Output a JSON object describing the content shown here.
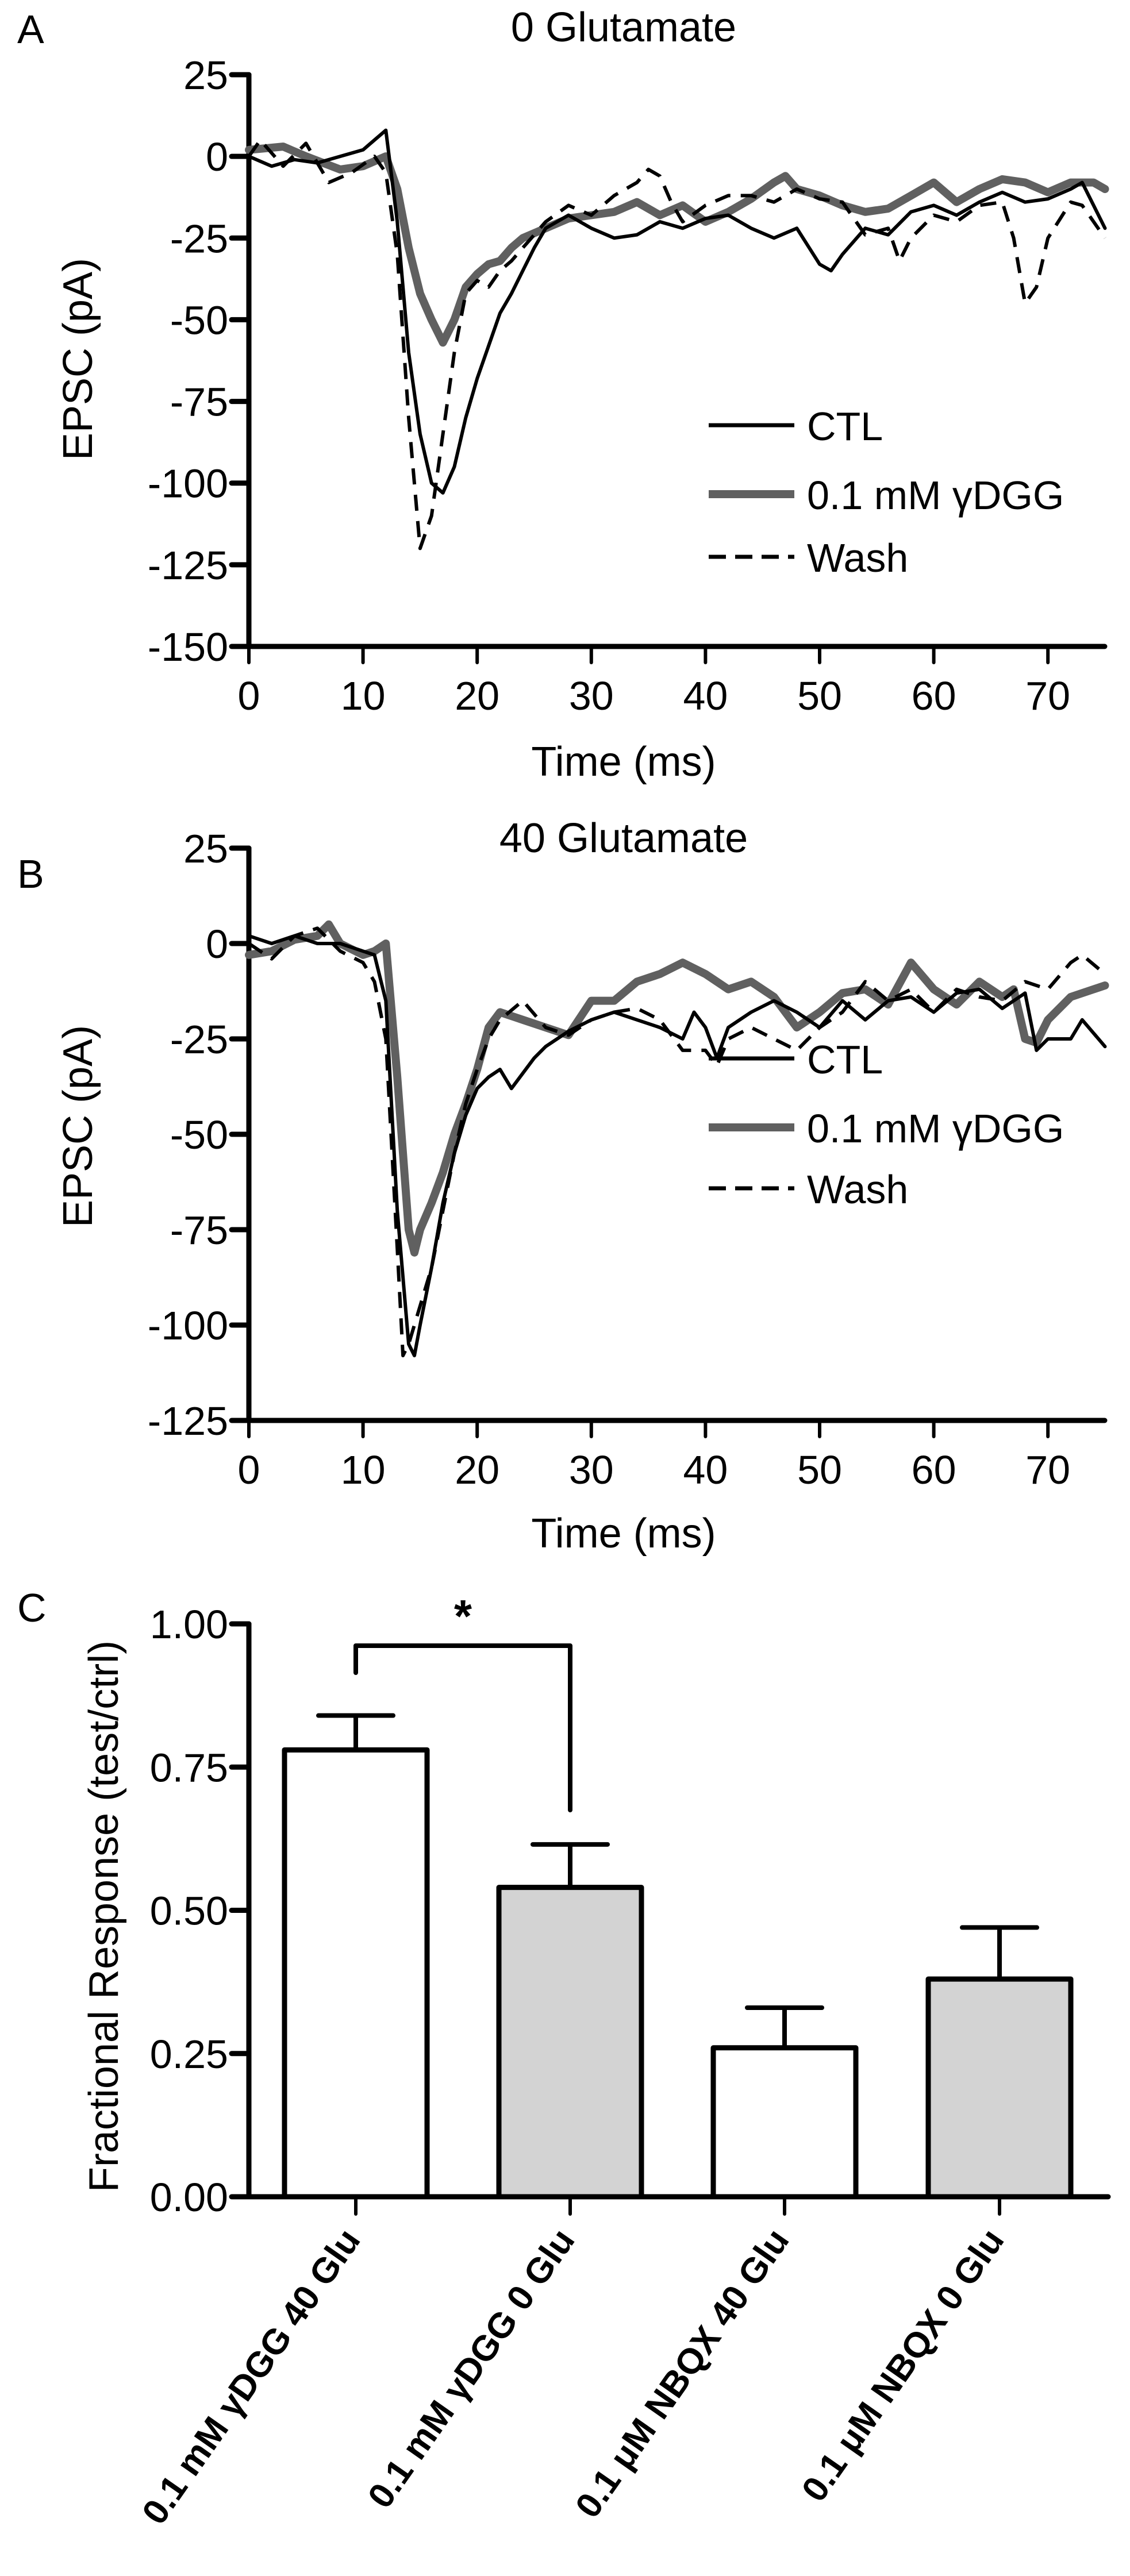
{
  "chart_data": [
    {
      "panel": "A",
      "type": "line",
      "title": "0 Glutamate",
      "xlabel": "Time (ms)",
      "ylabel": "EPSC (pA)",
      "xlim": [
        0,
        75
      ],
      "ylim": [
        -150,
        25
      ],
      "xticks": [
        0,
        10,
        20,
        30,
        40,
        50,
        60,
        70
      ],
      "yticks": [
        25,
        0,
        -25,
        -50,
        -75,
        -100,
        -125,
        -150
      ],
      "grid": false,
      "legend": "center-right",
      "series": [
        {
          "name": "CTL",
          "style": "solid",
          "color": "#000000",
          "x": [
            0,
            2,
            4,
            6,
            8,
            10,
            12,
            13,
            14,
            15,
            16,
            17,
            18,
            19,
            20,
            21,
            22,
            23,
            24,
            25,
            26,
            28,
            30,
            32,
            34,
            36,
            38,
            40,
            42,
            44,
            46,
            48,
            50,
            51,
            52,
            54,
            56,
            58,
            60,
            62,
            64,
            66,
            68,
            70,
            72,
            73,
            75
          ],
          "y": [
            0,
            -3,
            -1,
            -2,
            0,
            2,
            8,
            -20,
            -60,
            -85,
            -100,
            -103,
            -95,
            -80,
            -68,
            -58,
            -48,
            -42,
            -35,
            -28,
            -22,
            -18,
            -22,
            -25,
            -24,
            -20,
            -22,
            -19,
            -18,
            -22,
            -25,
            -22,
            -33,
            -35,
            -30,
            -22,
            -24,
            -17,
            -15,
            -18,
            -14,
            -11,
            -14,
            -13,
            -10,
            -8,
            -22
          ]
        },
        {
          "name": "0.1 mM γDGG",
          "style": "thick",
          "color": "#606060",
          "x": [
            0,
            3,
            5,
            8,
            10,
            12,
            13,
            14,
            15,
            16,
            17,
            18,
            19,
            20,
            21,
            22,
            23,
            24,
            26,
            28,
            30,
            32,
            34,
            36,
            38,
            40,
            42,
            44,
            46,
            47,
            48,
            50,
            52,
            54,
            56,
            58,
            60,
            62,
            64,
            66,
            68,
            70,
            72,
            74,
            75
          ],
          "y": [
            2,
            3,
            0,
            -4,
            -3,
            0,
            -10,
            -28,
            -42,
            -50,
            -57,
            -50,
            -40,
            -36,
            -33,
            -32,
            -28,
            -25,
            -22,
            -19,
            -18,
            -17,
            -14,
            -18,
            -15,
            -20,
            -17,
            -13,
            -8,
            -6,
            -10,
            -12,
            -15,
            -17,
            -16,
            -12,
            -8,
            -14,
            -10,
            -7,
            -8,
            -11,
            -8,
            -8,
            -10
          ]
        },
        {
          "name": "Wash",
          "style": "dashed",
          "color": "#000000",
          "x": [
            0,
            1,
            3,
            5,
            7,
            9,
            11,
            12,
            13,
            14,
            15,
            16,
            17,
            18,
            19,
            20,
            21,
            22,
            23,
            24,
            26,
            28,
            30,
            32,
            34,
            35,
            36,
            37,
            38,
            40,
            42,
            44,
            46,
            48,
            50,
            52,
            54,
            56,
            57,
            58,
            60,
            62,
            64,
            66,
            67,
            68,
            69,
            70,
            72,
            73,
            75
          ],
          "y": [
            0,
            5,
            -3,
            4,
            -8,
            -5,
            0,
            -5,
            -30,
            -80,
            -120,
            -110,
            -85,
            -60,
            -42,
            -38,
            -40,
            -35,
            -32,
            -28,
            -20,
            -15,
            -18,
            -12,
            -8,
            -4,
            -6,
            -14,
            -20,
            -15,
            -12,
            -12,
            -14,
            -10,
            -13,
            -14,
            -24,
            -22,
            -32,
            -25,
            -18,
            -20,
            -15,
            -14,
            -25,
            -45,
            -40,
            -25,
            -14,
            -15,
            -25
          ]
        }
      ]
    },
    {
      "panel": "B",
      "type": "line",
      "title": "40 Glutamate",
      "xlabel": "Time (ms)",
      "ylabel": "EPSC (pA)",
      "xlim": [
        0,
        75
      ],
      "ylim": [
        -125,
        25
      ],
      "xticks": [
        0,
        10,
        20,
        30,
        40,
        50,
        60,
        70
      ],
      "yticks": [
        25,
        0,
        -25,
        -50,
        -75,
        -100,
        -125
      ],
      "grid": false,
      "legend": "center-right",
      "series": [
        {
          "name": "CTL",
          "style": "solid",
          "color": "#000000",
          "x": [
            0,
            2,
            4,
            6,
            8,
            10,
            11,
            12,
            13,
            14,
            14.5,
            15,
            16,
            17,
            18,
            19,
            20,
            21,
            22,
            23,
            24,
            25,
            26,
            28,
            30,
            32,
            34,
            36,
            38,
            39,
            40,
            41,
            42,
            44,
            46,
            48,
            50,
            52,
            54,
            56,
            58,
            60,
            62,
            64,
            66,
            68,
            69,
            70,
            72,
            73,
            75
          ],
          "y": [
            2,
            0,
            2,
            0,
            0,
            -2,
            -3,
            -15,
            -70,
            -105,
            -108,
            -100,
            -85,
            -68,
            -55,
            -45,
            -38,
            -35,
            -33,
            -38,
            -34,
            -30,
            -27,
            -23,
            -20,
            -18,
            -20,
            -22,
            -25,
            -18,
            -22,
            -30,
            -22,
            -18,
            -15,
            -18,
            -22,
            -15,
            -20,
            -15,
            -14,
            -18,
            -13,
            -12,
            -17,
            -13,
            -28,
            -25,
            -25,
            -20,
            -27
          ]
        },
        {
          "name": "0.1 mM γDGG",
          "style": "thick",
          "color": "#606060",
          "x": [
            0,
            2,
            4,
            6,
            7,
            8,
            10,
            11,
            12,
            13,
            14,
            14.5,
            15,
            16,
            17,
            18,
            19,
            20,
            21,
            22,
            24,
            26,
            28,
            30,
            32,
            34,
            36,
            38,
            40,
            42,
            44,
            46,
            48,
            50,
            52,
            54,
            56,
            58,
            60,
            62,
            64,
            66,
            67,
            68,
            69,
            70,
            72,
            75
          ],
          "y": [
            -3,
            -2,
            1,
            2,
            5,
            0,
            -3,
            -2,
            0,
            -35,
            -75,
            -81,
            -75,
            -68,
            -60,
            -50,
            -42,
            -33,
            -22,
            -18,
            -20,
            -22,
            -24,
            -15,
            -15,
            -10,
            -8,
            -5,
            -8,
            -12,
            -10,
            -14,
            -22,
            -18,
            -13,
            -12,
            -16,
            -5,
            -12,
            -16,
            -10,
            -14,
            -12,
            -25,
            -26,
            -20,
            -14,
            -11
          ]
        },
        {
          "name": "Wash",
          "style": "dashed",
          "color": "#000000",
          "x": [
            0,
            2,
            4,
            6,
            8,
            10,
            11,
            12,
            13,
            13.5,
            14,
            15,
            16,
            17,
            18,
            19,
            20,
            21,
            22,
            24,
            26,
            28,
            30,
            32,
            34,
            36,
            38,
            40,
            41,
            42,
            44,
            46,
            48,
            50,
            52,
            54,
            56,
            58,
            60,
            62,
            64,
            66,
            68,
            70,
            72,
            73,
            75
          ],
          "y": [
            0,
            -4,
            2,
            4,
            -2,
            -5,
            -10,
            -25,
            -80,
            -108,
            -105,
            -95,
            -85,
            -70,
            -55,
            -42,
            -33,
            -25,
            -20,
            -15,
            -22,
            -24,
            -20,
            -18,
            -17,
            -20,
            -28,
            -28,
            -32,
            -25,
            -22,
            -25,
            -28,
            -22,
            -18,
            -10,
            -15,
            -12,
            -18,
            -12,
            -14,
            -15,
            -10,
            -12,
            -5,
            -3,
            -8
          ]
        }
      ]
    },
    {
      "panel": "C",
      "type": "bar",
      "title": "",
      "xlabel": "",
      "ylabel": "Fractional Response (test/ctrl)",
      "ylim": [
        0,
        1.0
      ],
      "yticks": [
        "0.00",
        "0.25",
        "0.50",
        "0.75",
        "1.00"
      ],
      "grid": false,
      "categories": [
        "0.1 mM γDGG 40 Glu",
        "0.1 mM γDGG 0 Glu",
        "0.1 μM NBQX 40 Glu",
        "0.1 μM NBQX 0 Glu"
      ],
      "values": [
        0.78,
        0.54,
        0.26,
        0.38
      ],
      "errors": [
        0.06,
        0.075,
        0.07,
        0.09
      ],
      "fills": [
        "#ffffff",
        "#d3d3d3",
        "#ffffff",
        "#d3d3d3"
      ],
      "annotations": [
        {
          "text": "*",
          "between": [
            0,
            1
          ]
        }
      ]
    }
  ],
  "panel_letters": [
    "A",
    "B",
    "C"
  ],
  "legend_labels": [
    "CTL",
    "0.1 mM γDGG",
    "Wash"
  ]
}
